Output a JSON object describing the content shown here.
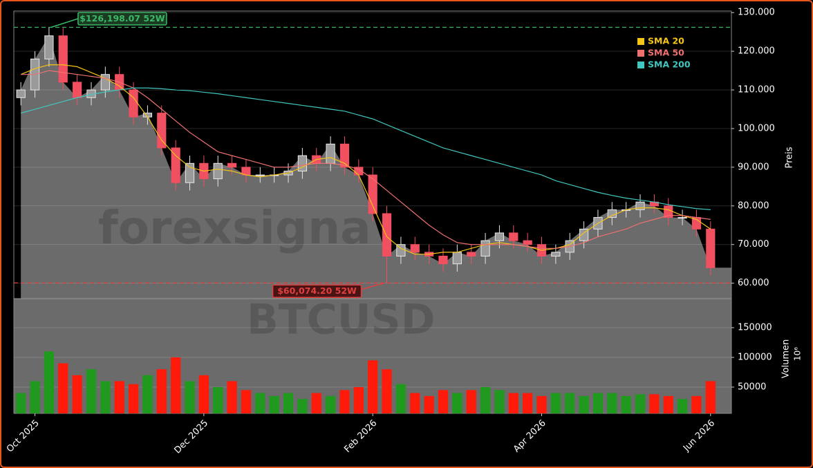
{
  "chart_data": {
    "type": "candlestick",
    "watermarks": [
      "forexsigna",
      "BTCUSD"
    ],
    "categories": [
      null,
      "Oct 2025",
      null,
      null,
      null,
      null,
      null,
      null,
      null,
      null,
      null,
      null,
      null,
      "Dec 2025",
      null,
      null,
      null,
      null,
      null,
      null,
      null,
      null,
      null,
      null,
      null,
      "Feb 2026",
      null,
      null,
      null,
      null,
      null,
      null,
      null,
      null,
      null,
      null,
      null,
      "Apr 2026",
      null,
      null,
      null,
      null,
      null,
      null,
      null,
      null,
      null,
      null,
      null,
      "Jun 2026"
    ],
    "open": [
      108000,
      110000,
      118000,
      124000,
      112000,
      108000,
      110000,
      114000,
      110000,
      103000,
      104000,
      95000,
      86000,
      91000,
      87000,
      91000,
      90000,
      88000,
      88000,
      88000,
      89000,
      93000,
      91000,
      96000,
      90000,
      88000,
      78000,
      67000,
      70000,
      68000,
      67000,
      65000,
      68000,
      67000,
      71000,
      73000,
      71000,
      70000,
      67000,
      68000,
      71000,
      74000,
      77000,
      79000,
      79000,
      81000,
      80000,
      77000,
      77000,
      74000
    ],
    "high": [
      112000,
      120000,
      126198.07,
      126000,
      114000,
      112000,
      116000,
      116000,
      112000,
      106000,
      106000,
      97000,
      93000,
      93000,
      93000,
      93000,
      92000,
      90000,
      90000,
      91000,
      95000,
      95000,
      98000,
      98000,
      92000,
      90000,
      80000,
      72000,
      72000,
      70000,
      69000,
      70000,
      70000,
      73000,
      75000,
      75000,
      73000,
      72000,
      70000,
      73000,
      76000,
      79000,
      81000,
      81000,
      83000,
      83000,
      82000,
      79000,
      79000,
      76000
    ],
    "low": [
      106000,
      108000,
      116000,
      110000,
      106000,
      106000,
      108000,
      108000,
      101000,
      101000,
      93000,
      84000,
      84000,
      85000,
      85000,
      88000,
      86000,
      86000,
      86000,
      86000,
      87000,
      89000,
      89000,
      88000,
      86000,
      76000,
      60074.2,
      65000,
      66000,
      65000,
      63000,
      63000,
      65000,
      65000,
      69000,
      69000,
      68000,
      65000,
      65000,
      66000,
      69000,
      72000,
      75000,
      77000,
      77000,
      78000,
      75000,
      75000,
      72000,
      62000
    ],
    "close": [
      110000,
      118000,
      124000,
      112000,
      108000,
      110000,
      114000,
      110000,
      103000,
      104000,
      95000,
      86000,
      91000,
      87000,
      91000,
      90000,
      88000,
      88000,
      88000,
      89000,
      93000,
      91000,
      96000,
      90000,
      88000,
      78000,
      67000,
      70000,
      68000,
      67000,
      65000,
      68000,
      67000,
      71000,
      73000,
      71000,
      70000,
      67000,
      68000,
      71000,
      74000,
      77000,
      79000,
      79000,
      81000,
      80000,
      77000,
      77000,
      74000,
      64000
    ],
    "volume": [
      40000,
      60000,
      110000,
      90000,
      70000,
      80000,
      60000,
      60000,
      55000,
      70000,
      80000,
      100000,
      60000,
      70000,
      50000,
      60000,
      45000,
      40000,
      35000,
      40000,
      30000,
      40000,
      35000,
      45000,
      50000,
      95000,
      80000,
      55000,
      40000,
      35000,
      45000,
      40000,
      45000,
      50000,
      45000,
      40000,
      40000,
      35000,
      40000,
      40000,
      35000,
      40000,
      40000,
      35000,
      38000,
      38000,
      35000,
      30000,
      35000,
      60000
    ],
    "up_color": "#e8e8e8",
    "down_color": "#f05060",
    "volume_up_color": "#1f9a1f",
    "volume_down_color": "#ff1a0a",
    "area_color": "#6b6b6b",
    "series": [
      {
        "name": "SMA 20",
        "color": "#f5c518",
        "values": [
          114000,
          115500,
          116500,
          116500,
          116000,
          114500,
          113000,
          111000,
          108000,
          103000,
          97000,
          93000,
          90000,
          89000,
          89500,
          89000,
          88000,
          87500,
          88000,
          88500,
          90000,
          92000,
          92500,
          91000,
          88000,
          80000,
          72000,
          69000,
          67500,
          67500,
          68000,
          68000,
          69000,
          70000,
          70500,
          70000,
          69500,
          68500,
          69000,
          70000,
          73000,
          75500,
          77500,
          79000,
          79500,
          79500,
          79000,
          77500,
          76500,
          74000
        ]
      },
      {
        "name": "SMA 50",
        "color": "#f07070",
        "values": [
          114000,
          114000,
          115000,
          114500,
          114000,
          113500,
          113000,
          112000,
          110500,
          108000,
          105000,
          102000,
          99000,
          96500,
          94000,
          93000,
          92000,
          91000,
          90000,
          90000,
          90500,
          91000,
          91000,
          90500,
          89500,
          87000,
          84000,
          81000,
          78000,
          75000,
          72500,
          70500,
          70000,
          70000,
          70000,
          70000,
          69500,
          69000,
          69000,
          69500,
          70500,
          72000,
          73000,
          74000,
          75500,
          76500,
          77500,
          77500,
          77000,
          76500
        ]
      },
      {
        "name": "SMA 200",
        "color": "#40c8c0",
        "values": [
          104000,
          105000,
          106000,
          107000,
          108000,
          108800,
          109500,
          110000,
          110500,
          110500,
          110300,
          110000,
          109800,
          109400,
          109000,
          108500,
          108000,
          107500,
          107000,
          106500,
          106000,
          105500,
          105000,
          104500,
          103500,
          102500,
          101000,
          99500,
          98000,
          96500,
          95000,
          94000,
          93000,
          92000,
          91000,
          90000,
          89000,
          88000,
          86500,
          85500,
          84500,
          83500,
          82700,
          82000,
          81500,
          81000,
          80300,
          79800,
          79300,
          79000
        ]
      }
    ],
    "ylim": [
      56000,
      130400
    ],
    "yticks": [
      {
        "value": 60000,
        "label": "60.000"
      },
      {
        "value": 70000,
        "label": "70.000"
      },
      {
        "value": 80000,
        "label": "80.000"
      },
      {
        "value": 90000,
        "label": "90.000"
      },
      {
        "value": 100000,
        "label": "100.000"
      },
      {
        "value": 110000,
        "label": "110.000"
      },
      {
        "value": 120000,
        "label": "120.000"
      },
      {
        "value": 130000,
        "label": "130.000"
      }
    ],
    "ylabel": "Preis",
    "volume_ylim": [
      5800,
      198800
    ],
    "volume_yticks": [
      50000,
      100000,
      150000
    ],
    "volume_label": "Volumen",
    "volume_scale_label": "10⁶",
    "annotations": [
      {
        "label": "$126,198.07 52W",
        "value": 126198.07,
        "color": "#3cb868"
      },
      {
        "label": "$60,074.20 52W",
        "value": 60074.2,
        "color": "#e04040"
      }
    ],
    "grid": true,
    "legend": "upper right"
  }
}
